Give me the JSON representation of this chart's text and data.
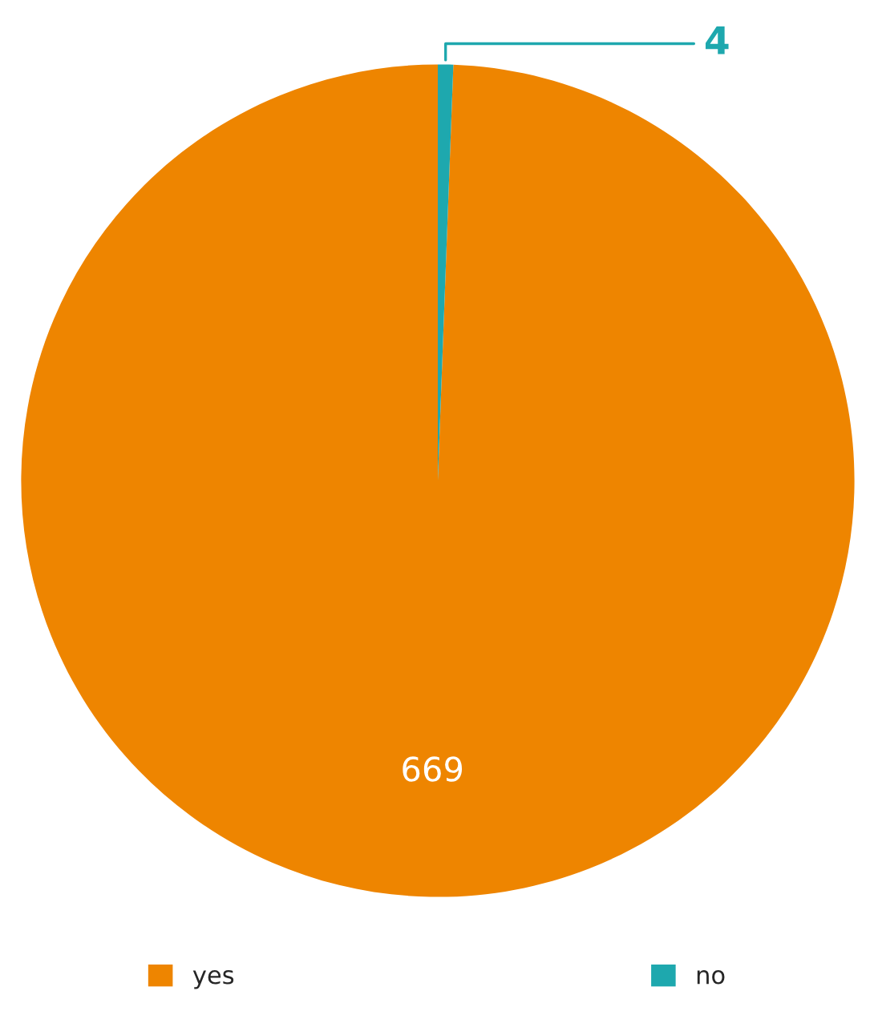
{
  "chart_data": {
    "type": "pie",
    "categories": [
      "yes",
      "no"
    ],
    "values": [
      669,
      4
    ],
    "colors": [
      "#ee8500",
      "#1ea8ae"
    ],
    "data_labels": true,
    "legend": "bottom"
  }
}
